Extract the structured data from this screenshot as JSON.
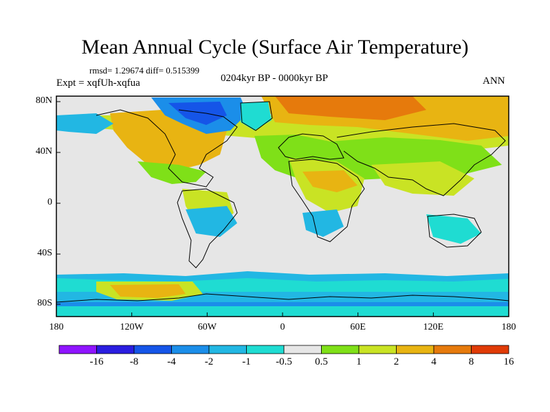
{
  "title": "Mean Annual Cycle (Surface Air Temperature)",
  "stats": "rmsd= 1.29674  diff= 0.515399",
  "experiment": "Expt = xqfUh-xqfua",
  "period": "0204kyr BP - 0000kyr BP",
  "season": "ANN",
  "axes": {
    "lat_ticks": [
      "80N",
      "40N",
      "0",
      "40S",
      "80S"
    ],
    "lon_ticks": [
      "180",
      "120W",
      "60W",
      "0",
      "60E",
      "120E",
      "180"
    ]
  },
  "colorbar": {
    "labels": [
      "-16",
      "-8",
      "-4",
      "-2",
      "-1",
      "-0.5",
      "0.5",
      "1",
      "2",
      "4",
      "8",
      "16"
    ],
    "colors": [
      "#8f14ff",
      "#2a1de0",
      "#1555e8",
      "#1b8ee9",
      "#22b7e3",
      "#1fdcd2",
      "#e6e6e6",
      "#7fe018",
      "#c9e324",
      "#e8b412",
      "#e67a0c",
      "#e03b06"
    ]
  },
  "palette": {
    "neutral": "#e6e6e6",
    "warm1": "#7fe018",
    "warm2": "#c9e324",
    "warm3": "#e8b412",
    "warm4": "#e67a0c",
    "cool1": "#1fdcd2",
    "cool2": "#22b7e3",
    "cool3": "#1b8ee9",
    "cool4": "#1555e8"
  }
}
